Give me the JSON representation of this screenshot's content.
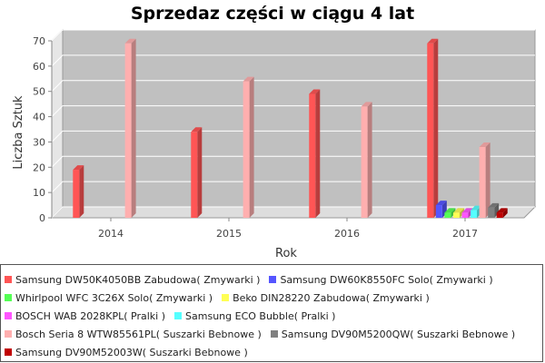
{
  "chart_data": {
    "type": "bar",
    "title": "Sprzedaz części w ciągu 4 lat",
    "xlabel": "Rok",
    "ylabel": "Liczba Sztuk",
    "categories": [
      "2014",
      "2015",
      "2016",
      "2017"
    ],
    "ylim": [
      0,
      70
    ],
    "yticks": [
      0,
      10,
      20,
      30,
      40,
      50,
      60,
      70
    ],
    "grid": true,
    "three_d": true,
    "legend_position": "bottom",
    "series": [
      {
        "name": "Samsung DW50K4050BB Zabudowa( Zmywarki )",
        "color": "#ff5555",
        "values": [
          19,
          34,
          49,
          69
        ]
      },
      {
        "name": "Samsung DW60K8550FC Solo( Zmywarki )",
        "color": "#5555ff",
        "values": [
          0,
          0,
          0,
          5
        ]
      },
      {
        "name": "Whirlpool WFC 3C26X Solo( Zmywarki )",
        "color": "#55ff55",
        "values": [
          0,
          0,
          0,
          2
        ]
      },
      {
        "name": "Beko DIN28220 Zabudowa( Zmywarki )",
        "color": "#ffff55",
        "values": [
          0,
          0,
          0,
          2
        ]
      },
      {
        "name": "BOSCH WAB 2028KPL( Pralki )",
        "color": "#ff55ff",
        "values": [
          0,
          0,
          0,
          2
        ]
      },
      {
        "name": "Samsung ECO Bubble( Pralki )",
        "color": "#55ffff",
        "values": [
          0,
          0,
          0,
          3
        ]
      },
      {
        "name": "Bosch Seria 8 WTW85561PL( Suszarki Bebnowe )",
        "color": "#ffafaf",
        "values": [
          69,
          54,
          44,
          28
        ]
      },
      {
        "name": "Samsung DV90M5200QW( Suszarki Bebnowe )",
        "color": "#808080",
        "values": [
          0,
          0,
          0,
          4
        ]
      },
      {
        "name": "Samsung DV90M52003W( Suszarki Bebnowe )",
        "color": "#c00000",
        "values": [
          0,
          0,
          0,
          2
        ]
      }
    ]
  }
}
